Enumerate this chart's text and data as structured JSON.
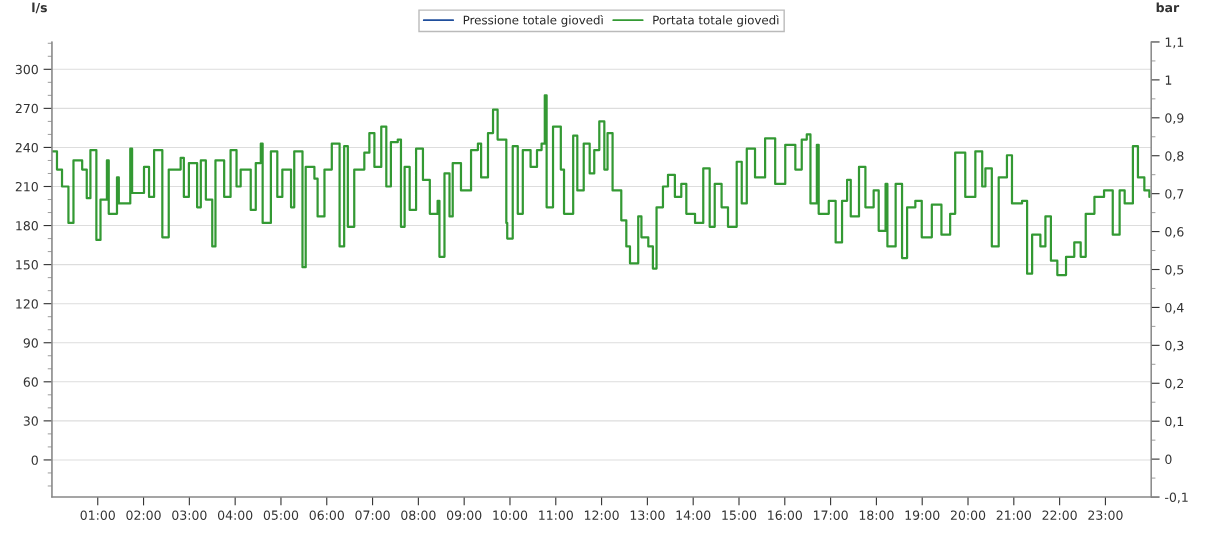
{
  "chart_data": {
    "type": "step",
    "ylabel": "l/s",
    "y2label": "bar",
    "xlim": [
      0,
      24
    ],
    "xticks": [
      {
        "value": 1,
        "label": "01:00"
      },
      {
        "value": 2,
        "label": "02:00"
      },
      {
        "value": 3,
        "label": "03:00"
      },
      {
        "value": 4,
        "label": "04:00"
      },
      {
        "value": 5,
        "label": "05:00"
      },
      {
        "value": 6,
        "label": "06:00"
      },
      {
        "value": 7,
        "label": "07:00"
      },
      {
        "value": 8,
        "label": "08:00"
      },
      {
        "value": 9,
        "label": "09:00"
      },
      {
        "value": 10,
        "label": "10:00"
      },
      {
        "value": 11,
        "label": "11:00"
      },
      {
        "value": 12,
        "label": "12:00"
      },
      {
        "value": 13,
        "label": "13:00"
      },
      {
        "value": 14,
        "label": "14:00"
      },
      {
        "value": 15,
        "label": "15:00"
      },
      {
        "value": 16,
        "label": "16:00"
      },
      {
        "value": 17,
        "label": "17:00"
      },
      {
        "value": 18,
        "label": "18:00"
      },
      {
        "value": 19,
        "label": "19:00"
      },
      {
        "value": 20,
        "label": "20:00"
      },
      {
        "value": 21,
        "label": "21:00"
      },
      {
        "value": 22,
        "label": "22:00"
      },
      {
        "value": 23,
        "label": "23:00"
      }
    ],
    "ylim": [
      -28.5,
      321
    ],
    "yticks": [
      0,
      30,
      60,
      90,
      120,
      150,
      180,
      210,
      240,
      270,
      300
    ],
    "y2lim": [
      -0.1,
      1.1
    ],
    "y2ticks": [
      {
        "value": -0.1,
        "label": "-0,1"
      },
      0,
      {
        "value": 0.1,
        "label": "0,1"
      },
      {
        "value": 0.2,
        "label": "0,2"
      },
      {
        "value": 0.3,
        "label": "0,3"
      },
      {
        "value": 0.4,
        "label": "0,4"
      },
      {
        "value": 0.5,
        "label": "0,5"
      },
      {
        "value": 0.6,
        "label": "0,6"
      },
      {
        "value": 0.7,
        "label": "0,7"
      },
      {
        "value": 0.8,
        "label": "0,8"
      },
      {
        "value": 0.9,
        "label": "0,9"
      },
      1,
      {
        "value": 1.1,
        "label": "1,1"
      }
    ],
    "grid": "y",
    "legend": "top",
    "series": [
      {
        "name": "Pressione totale giovedì",
        "color": "#1f4e9c"
      },
      {
        "name": "Portata totale giovedì",
        "color": "#339933",
        "x": [
          0.0,
          0.11,
          0.22,
          0.36,
          0.47,
          0.66,
          0.76,
          0.84,
          0.97,
          1.06,
          1.2,
          1.24,
          1.42,
          1.46,
          1.71,
          1.75,
          2.01,
          2.12,
          2.23,
          2.41,
          2.55,
          2.81,
          2.88,
          2.99,
          3.17,
          3.25,
          3.36,
          3.5,
          3.57,
          3.76,
          3.9,
          4.03,
          4.12,
          4.34,
          4.45,
          4.56,
          4.6,
          4.78,
          4.92,
          5.03,
          5.22,
          5.29,
          5.47,
          5.54,
          5.73,
          5.8,
          5.95,
          6.11,
          6.28,
          6.38,
          6.46,
          6.6,
          6.82,
          6.93,
          7.04,
          7.19,
          7.3,
          7.4,
          7.55,
          7.62,
          7.7,
          7.81,
          7.95,
          8.03,
          8.1,
          8.25,
          8.42,
          8.46,
          8.57,
          8.68,
          8.75,
          8.93,
          9.15,
          9.3,
          9.37,
          9.52,
          9.63,
          9.73,
          9.92,
          9.94,
          10.06,
          10.17,
          10.28,
          10.45,
          10.59,
          10.69,
          10.76,
          10.8,
          10.94,
          11.11,
          11.18,
          11.38,
          11.47,
          11.61,
          11.74,
          11.84,
          11.95,
          12.06,
          12.13,
          12.24,
          12.43,
          12.54,
          12.62,
          12.8,
          12.87,
          13.02,
          13.12,
          13.2,
          13.34,
          13.45,
          13.6,
          13.74,
          13.85,
          14.04,
          14.22,
          14.36,
          14.47,
          14.62,
          14.76,
          14.95,
          15.06,
          15.17,
          15.35,
          15.57,
          15.79,
          16.01,
          16.08,
          16.23,
          16.37,
          16.48,
          16.56,
          16.7,
          16.74,
          16.96,
          17.11,
          17.25,
          17.36,
          17.44,
          17.62,
          17.76,
          17.94,
          18.05,
          18.2,
          18.24,
          18.42,
          18.56,
          18.67,
          18.85,
          18.99,
          19.21,
          19.42,
          19.61,
          19.72,
          19.94,
          20.16,
          20.31,
          20.38,
          20.52,
          20.67,
          20.85,
          20.96,
          21.18,
          21.29,
          21.4,
          21.58,
          21.69,
          21.81,
          21.95,
          22.14,
          22.32,
          22.46,
          22.57,
          22.76,
          22.97,
          23.16,
          23.31,
          23.42,
          23.6,
          23.71,
          23.85,
          23.96
        ],
        "values": [
          237,
          223,
          210,
          182,
          230,
          223,
          201,
          238,
          169,
          200,
          230,
          189,
          217,
          197,
          239,
          205,
          225,
          202,
          238,
          171,
          223,
          232,
          202,
          228,
          194,
          230,
          200,
          164,
          230,
          202,
          238,
          210,
          223,
          192,
          228,
          243,
          182,
          237,
          202,
          223,
          194,
          237,
          148,
          225,
          216,
          187,
          223,
          243,
          164,
          241,
          179,
          223,
          236,
          251,
          225,
          256,
          210,
          244,
          246,
          179,
          225,
          192,
          239,
          239,
          215,
          189,
          199,
          156,
          220,
          187,
          228,
          207,
          238,
          243,
          217,
          251,
          269,
          246,
          182,
          170,
          241,
          189,
          238,
          225,
          238,
          243,
          280,
          194,
          256,
          223,
          189,
          249,
          207,
          243,
          220,
          238,
          260,
          223,
          251,
          207,
          184,
          164,
          151,
          187,
          171,
          164,
          147,
          194,
          210,
          219,
          202,
          212,
          189,
          182,
          224,
          179,
          212,
          194,
          179,
          229,
          197,
          239,
          217,
          247,
          212,
          242,
          242,
          223,
          246,
          250,
          197,
          242,
          189,
          199,
          167,
          199,
          215,
          187,
          225,
          194,
          207,
          176,
          212,
          164,
          212,
          155,
          194,
          199,
          171,
          196,
          173,
          189,
          236,
          202,
          237,
          210,
          224,
          164,
          217,
          234,
          197,
          199,
          143,
          173,
          164,
          187,
          153,
          142,
          156,
          167,
          156,
          189,
          202,
          207,
          173,
          207,
          197,
          241,
          217,
          207,
          202
        ]
      }
    ]
  }
}
